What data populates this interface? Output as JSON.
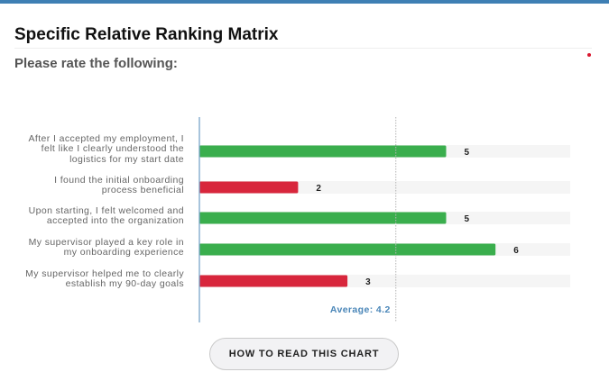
{
  "header": {
    "title": "Specific Relative Ranking Matrix",
    "subtitle": "Please rate the following:"
  },
  "chart_data": {
    "type": "bar",
    "orientation": "horizontal",
    "categories": [
      "After I accepted my employment, I felt like I clearly understood the logistics for my start date",
      "I found the initial onboarding process beneficial",
      "Upon starting, I felt welcomed and accepted into the organization",
      "My supervisor played a key role in my onboarding experience",
      "My supervisor helped me to clearly establish my 90-day goals"
    ],
    "label_lines": [
      [
        "After I accepted my employment, I",
        "felt like I clearly understood the",
        "logistics for my start date"
      ],
      [
        "I found the initial onboarding",
        "process beneficial"
      ],
      [
        "Upon starting, I felt welcomed and",
        "accepted into the organization"
      ],
      [
        "My supervisor played a key role in",
        "my onboarding experience"
      ],
      [
        "My supervisor helped me to clearly",
        "establish my 90-day goals"
      ]
    ],
    "values": [
      5,
      2,
      5,
      6,
      3
    ],
    "value_labels": [
      "5",
      "2",
      "5",
      "6",
      "3"
    ],
    "xlim": [
      0,
      7
    ],
    "average": 4.2,
    "average_label": "Average: 4.2",
    "colors": {
      "above_average": "#3aae4d",
      "below_average": "#d8263c",
      "track": "#f5f5f5",
      "axis": "#7aa5c8",
      "average_line": "#b5b5b5",
      "average_text": "#4a86b8"
    }
  },
  "footer": {
    "button_label": "HOW TO READ THIS CHART"
  }
}
